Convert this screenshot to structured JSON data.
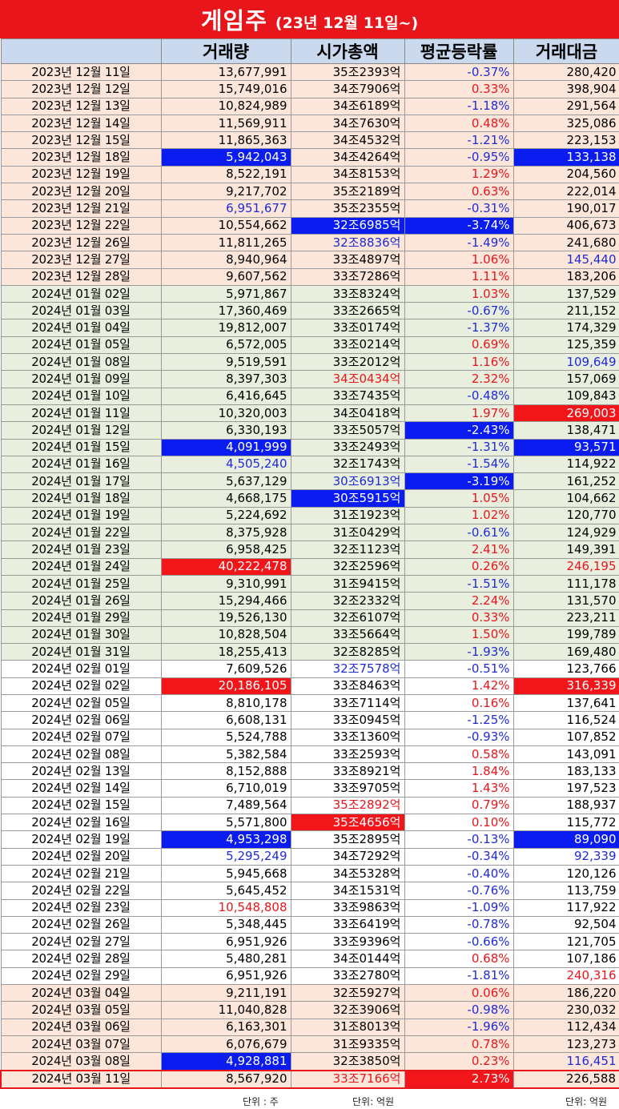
{
  "title": {
    "main": "게임주",
    "sub": "(23년 12월 11일~)"
  },
  "headers": [
    "",
    "거래량",
    "시가총액",
    "평균등락률",
    "거래대금"
  ],
  "units": {
    "volume": "단위 : 주",
    "cap": "단위: 억원",
    "amount": "단위: 억원"
  },
  "colors": {
    "title_bg": "#e8161b",
    "header_bg": "#cbd9ee",
    "highlight_blue": "#0a1cf0",
    "highlight_red": "#f2161b",
    "text_red": "#e8161b",
    "text_blue": "#1f2bd6"
  },
  "rows": [
    {
      "date": "2023년 12월 11일",
      "volume": "13,677,991",
      "cap": "35조2393억",
      "change": "-0.37%",
      "amount": "280,420",
      "g": "dec"
    },
    {
      "date": "2023년 12월 12일",
      "volume": "15,749,016",
      "cap": "34조7906억",
      "change": "0.33%",
      "amount": "398,904",
      "g": "dec"
    },
    {
      "date": "2023년 12월 13일",
      "volume": "10,824,989",
      "cap": "34조6189억",
      "change": "-1.18%",
      "amount": "291,564",
      "g": "dec"
    },
    {
      "date": "2023년 12월 14일",
      "volume": "11,569,911",
      "cap": "34조7630억",
      "change": "0.48%",
      "amount": "325,086",
      "g": "dec"
    },
    {
      "date": "2023년 12월 15일",
      "volume": "11,865,363",
      "cap": "34조4532억",
      "change": "-1.21%",
      "amount": "223,153",
      "g": "dec"
    },
    {
      "date": "2023년 12월 18일",
      "volume": "5,942,043",
      "cap": "34조4264억",
      "change": "-0.95%",
      "amount": "133,138",
      "g": "dec",
      "vh": "h-blue",
      "ah": "h-blue"
    },
    {
      "date": "2023년 12월 19일",
      "volume": "8,522,191",
      "cap": "34조8153억",
      "change": "1.29%",
      "amount": "204,560",
      "g": "dec"
    },
    {
      "date": "2023년 12월 20일",
      "volume": "9,217,702",
      "cap": "35조2189억",
      "change": "0.63%",
      "amount": "222,014",
      "g": "dec"
    },
    {
      "date": "2023년 12월 21일",
      "volume": "6,951,677",
      "cap": "35조2355억",
      "change": "-0.31%",
      "amount": "190,017",
      "g": "dec",
      "vh": "t-blue"
    },
    {
      "date": "2023년 12월 22일",
      "volume": "10,554,662",
      "cap": "32조6985억",
      "change": "-3.74%",
      "amount": "406,673",
      "g": "dec",
      "ch": "h-blue",
      "xh": "h-blue"
    },
    {
      "date": "2023년 12월 26일",
      "volume": "11,811,265",
      "cap": "32조8836억",
      "change": "-1.49%",
      "amount": "241,680",
      "g": "dec",
      "ch": "t-blue"
    },
    {
      "date": "2023년 12월 27일",
      "volume": "8,940,964",
      "cap": "33조4897억",
      "change": "1.06%",
      "amount": "145,440",
      "g": "dec",
      "ah": "t-blue"
    },
    {
      "date": "2023년 12월 28일",
      "volume": "9,607,562",
      "cap": "33조7286억",
      "change": "1.11%",
      "amount": "183,206",
      "g": "dec"
    },
    {
      "date": "2024년 01월 02일",
      "volume": "5,971,867",
      "cap": "33조8324억",
      "change": "1.03%",
      "amount": "137,529",
      "g": "jan"
    },
    {
      "date": "2024년 01월 03일",
      "volume": "17,360,469",
      "cap": "33조2665억",
      "change": "-0.67%",
      "amount": "211,152",
      "g": "jan"
    },
    {
      "date": "2024년 01월 04일",
      "volume": "19,812,007",
      "cap": "33조0174억",
      "change": "-1.37%",
      "amount": "174,329",
      "g": "jan"
    },
    {
      "date": "2024년 01월 05일",
      "volume": "6,572,005",
      "cap": "33조0214억",
      "change": "0.69%",
      "amount": "125,359",
      "g": "jan"
    },
    {
      "date": "2024년 01월 08일",
      "volume": "9,519,591",
      "cap": "33조2012억",
      "change": "1.16%",
      "amount": "109,649",
      "g": "jan",
      "ah": "t-blue"
    },
    {
      "date": "2024년 01월 09일",
      "volume": "8,397,303",
      "cap": "34조0434억",
      "change": "2.32%",
      "amount": "157,069",
      "g": "jan",
      "ch": "t-red"
    },
    {
      "date": "2024년 01월 10일",
      "volume": "6,416,645",
      "cap": "33조7435억",
      "change": "-0.48%",
      "amount": "109,843",
      "g": "jan"
    },
    {
      "date": "2024년 01월 11일",
      "volume": "10,320,003",
      "cap": "34조0418억",
      "change": "1.97%",
      "amount": "269,003",
      "g": "jan",
      "ah": "h-red"
    },
    {
      "date": "2024년 01월 12일",
      "volume": "6,330,193",
      "cap": "33조5057억",
      "change": "-2.43%",
      "amount": "138,471",
      "g": "jan",
      "xh": "h-blue"
    },
    {
      "date": "2024년 01월 15일",
      "volume": "4,091,999",
      "cap": "33조2493억",
      "change": "-1.31%",
      "amount": "93,571",
      "g": "jan",
      "vh": "h-blue",
      "ah": "h-blue"
    },
    {
      "date": "2024년 01월 16일",
      "volume": "4,505,240",
      "cap": "32조1743억",
      "change": "-1.54%",
      "amount": "114,922",
      "g": "jan",
      "vh": "t-blue"
    },
    {
      "date": "2024년 01월 17일",
      "volume": "5,637,129",
      "cap": "30조6913억",
      "change": "-3.19%",
      "amount": "161,252",
      "g": "jan",
      "ch": "t-blue",
      "xh": "h-blue"
    },
    {
      "date": "2024년 01월 18일",
      "volume": "4,668,175",
      "cap": "30조5915억",
      "change": "1.05%",
      "amount": "104,662",
      "g": "jan",
      "ch": "h-blue"
    },
    {
      "date": "2024년 01월 19일",
      "volume": "5,224,692",
      "cap": "31조1923억",
      "change": "1.02%",
      "amount": "120,770",
      "g": "jan"
    },
    {
      "date": "2024년 01월 22일",
      "volume": "8,375,928",
      "cap": "31조0429억",
      "change": "-0.61%",
      "amount": "124,929",
      "g": "jan"
    },
    {
      "date": "2024년 01월 23일",
      "volume": "6,958,425",
      "cap": "32조1123억",
      "change": "2.41%",
      "amount": "149,391",
      "g": "jan"
    },
    {
      "date": "2024년 01월 24일",
      "volume": "40,222,478",
      "cap": "32조2596억",
      "change": "0.26%",
      "amount": "246,195",
      "g": "jan",
      "vh": "h-red",
      "ah": "t-red"
    },
    {
      "date": "2024년 01월 25일",
      "volume": "9,310,991",
      "cap": "31조9415억",
      "change": "-1.51%",
      "amount": "111,178",
      "g": "jan"
    },
    {
      "date": "2024년 01월 26일",
      "volume": "15,294,466",
      "cap": "32조2332억",
      "change": "2.24%",
      "amount": "131,570",
      "g": "jan"
    },
    {
      "date": "2024년 01월 29일",
      "volume": "19,526,130",
      "cap": "32조6107억",
      "change": "0.33%",
      "amount": "223,211",
      "g": "jan"
    },
    {
      "date": "2024년 01월 30일",
      "volume": "10,828,504",
      "cap": "33조5664억",
      "change": "1.50%",
      "amount": "199,789",
      "g": "jan"
    },
    {
      "date": "2024년 01월 31일",
      "volume": "18,255,413",
      "cap": "32조8285억",
      "change": "-1.93%",
      "amount": "169,480",
      "g": "jan"
    },
    {
      "date": "2024년 02월 01일",
      "volume": "7,609,526",
      "cap": "32조7578억",
      "change": "-0.51%",
      "amount": "123,766",
      "g": "feb",
      "ch": "t-blue"
    },
    {
      "date": "2024년 02월 02일",
      "volume": "20,186,105",
      "cap": "33조8463억",
      "change": "1.42%",
      "amount": "316,339",
      "g": "feb",
      "vh": "h-red",
      "ah": "h-red"
    },
    {
      "date": "2024년 02월 05일",
      "volume": "8,810,178",
      "cap": "33조7114억",
      "change": "0.16%",
      "amount": "137,641",
      "g": "feb"
    },
    {
      "date": "2024년 02월 06일",
      "volume": "6,608,131",
      "cap": "33조0945억",
      "change": "-1.25%",
      "amount": "116,524",
      "g": "feb"
    },
    {
      "date": "2024년 02월 07일",
      "volume": "5,524,788",
      "cap": "33조1360억",
      "change": "-0.93%",
      "amount": "107,852",
      "g": "feb"
    },
    {
      "date": "2024년 02월 08일",
      "volume": "5,382,584",
      "cap": "33조2593억",
      "change": "0.58%",
      "amount": "143,091",
      "g": "feb"
    },
    {
      "date": "2024년 02월 13일",
      "volume": "8,152,888",
      "cap": "33조8921억",
      "change": "1.84%",
      "amount": "183,133",
      "g": "feb"
    },
    {
      "date": "2024년 02월 14일",
      "volume": "6,710,019",
      "cap": "33조9705억",
      "change": "1.43%",
      "amount": "197,523",
      "g": "feb"
    },
    {
      "date": "2024년 02월 15일",
      "volume": "7,489,564",
      "cap": "35조2892억",
      "change": "0.79%",
      "amount": "188,937",
      "g": "feb",
      "ch": "t-red"
    },
    {
      "date": "2024년 02월 16일",
      "volume": "5,571,800",
      "cap": "35조4656억",
      "change": "0.10%",
      "amount": "115,772",
      "g": "feb",
      "ch": "h-red"
    },
    {
      "date": "2024년 02월 19일",
      "volume": "4,953,298",
      "cap": "35조2895억",
      "change": "-0.13%",
      "amount": "89,090",
      "g": "feb",
      "vh": "h-blue",
      "ah": "h-blue"
    },
    {
      "date": "2024년 02월 20일",
      "volume": "5,295,249",
      "cap": "34조7292억",
      "change": "-0.34%",
      "amount": "92,339",
      "g": "feb",
      "vh": "t-blue",
      "ah": "t-blue"
    },
    {
      "date": "2024년 02월 21일",
      "volume": "5,945,668",
      "cap": "34조5328억",
      "change": "-0.40%",
      "amount": "120,126",
      "g": "feb"
    },
    {
      "date": "2024년 02월 22일",
      "volume": "5,645,452",
      "cap": "34조1531억",
      "change": "-0.76%",
      "amount": "113,759",
      "g": "feb"
    },
    {
      "date": "2024년 02월 23일",
      "volume": "10,548,808",
      "cap": "33조9863억",
      "change": "-1.09%",
      "amount": "117,922",
      "g": "feb",
      "vh": "t-red"
    },
    {
      "date": "2024년 02월 26일",
      "volume": "5,348,445",
      "cap": "33조6419억",
      "change": "-0.78%",
      "amount": "92,504",
      "g": "feb"
    },
    {
      "date": "2024년 02월 27일",
      "volume": "6,951,926",
      "cap": "33조9396억",
      "change": "-0.66%",
      "amount": "121,705",
      "g": "feb"
    },
    {
      "date": "2024년 02월 28일",
      "volume": "5,480,281",
      "cap": "34조0144억",
      "change": "0.68%",
      "amount": "107,186",
      "g": "feb"
    },
    {
      "date": "2024년 02월 29일",
      "volume": "6,951,926",
      "cap": "33조2780억",
      "change": "-1.81%",
      "amount": "240,316",
      "g": "feb",
      "ah": "t-red"
    },
    {
      "date": "2024년 03월 04일",
      "volume": "9,211,191",
      "cap": "32조5927억",
      "change": "0.06%",
      "amount": "186,220",
      "g": "mar"
    },
    {
      "date": "2024년 03월 05일",
      "volume": "11,040,828",
      "cap": "32조3906억",
      "change": "-0.98%",
      "amount": "230,032",
      "g": "mar"
    },
    {
      "date": "2024년 03월 06일",
      "volume": "6,163,301",
      "cap": "31조8013억",
      "change": "-1.96%",
      "amount": "112,434",
      "g": "mar"
    },
    {
      "date": "2024년 03월 07일",
      "volume": "6,076,679",
      "cap": "31조9335억",
      "change": "0.78%",
      "amount": "123,273",
      "g": "mar"
    },
    {
      "date": "2024년 03월 08일",
      "volume": "4,928,881",
      "cap": "32조3850억",
      "change": "0.23%",
      "amount": "116,451",
      "g": "mar",
      "vh": "h-blue",
      "ah": "t-blue"
    },
    {
      "date": "2024년 03월 11일",
      "volume": "8,567,920",
      "cap": "33조7166억",
      "change": "2.73%",
      "amount": "226,588",
      "g": "mar last",
      "ch": "t-red",
      "xh": "h-red"
    }
  ]
}
